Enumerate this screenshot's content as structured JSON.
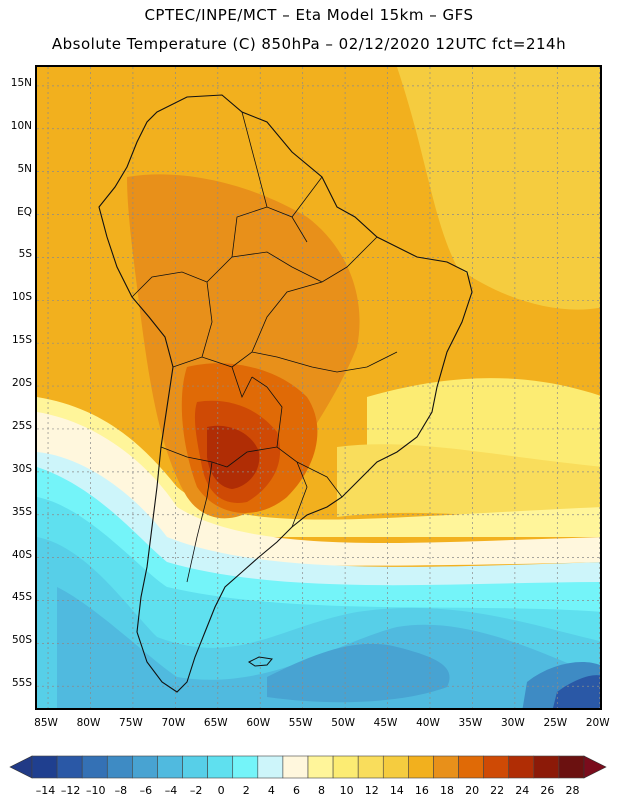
{
  "header": {
    "line1": "CPTEC/INPE/MCT –   Eta Model 15km – GFS",
    "line2": "Absolute Temperature (C) 850hPa – 02/12/2020 12UTC fct=214h"
  },
  "map": {
    "lat_labels": [
      "15N",
      "10N",
      "5N",
      "EQ",
      "5S",
      "10S",
      "15S",
      "20S",
      "25S",
      "30S",
      "35S",
      "40S",
      "45S",
      "50S",
      "55S"
    ],
    "lat_values": [
      15,
      10,
      5,
      0,
      -5,
      -10,
      -15,
      -20,
      -25,
      -30,
      -35,
      -40,
      -45,
      -50,
      -55
    ],
    "lon_labels": [
      "85W",
      "80W",
      "75W",
      "70W",
      "65W",
      "60W",
      "55W",
      "50W",
      "45W",
      "40W",
      "35W",
      "30W",
      "25W",
      "20W"
    ],
    "lon_values": [
      -85,
      -80,
      -75,
      -70,
      -65,
      -60,
      -55,
      -50,
      -45,
      -40,
      -35,
      -30,
      -25,
      -20
    ]
  },
  "colorbar": {
    "labels": [
      "-14",
      "-12",
      "-10",
      "-8",
      "-6",
      "-4",
      "-2",
      "0",
      "2",
      "4",
      "6",
      "8",
      "10",
      "12",
      "14",
      "16",
      "18",
      "20",
      "22",
      "24",
      "26",
      "28"
    ],
    "colors": [
      "#1f3f8f",
      "#2a58a6",
      "#3471b5",
      "#3e8bc4",
      "#48a3d2",
      "#50badf",
      "#57cfe8",
      "#5fe0ef",
      "#74f4f9",
      "#cdf5fa",
      "#fff7dd",
      "#fff59a",
      "#fcec73",
      "#f9dd5c",
      "#f5cc3f",
      "#f2b01e",
      "#e8901a",
      "#e06a06",
      "#cf4a05",
      "#b02d05",
      "#8c1a08",
      "#6b1110"
    ],
    "under_color": "#213a86",
    "over_color": "#7a0c1c"
  }
}
